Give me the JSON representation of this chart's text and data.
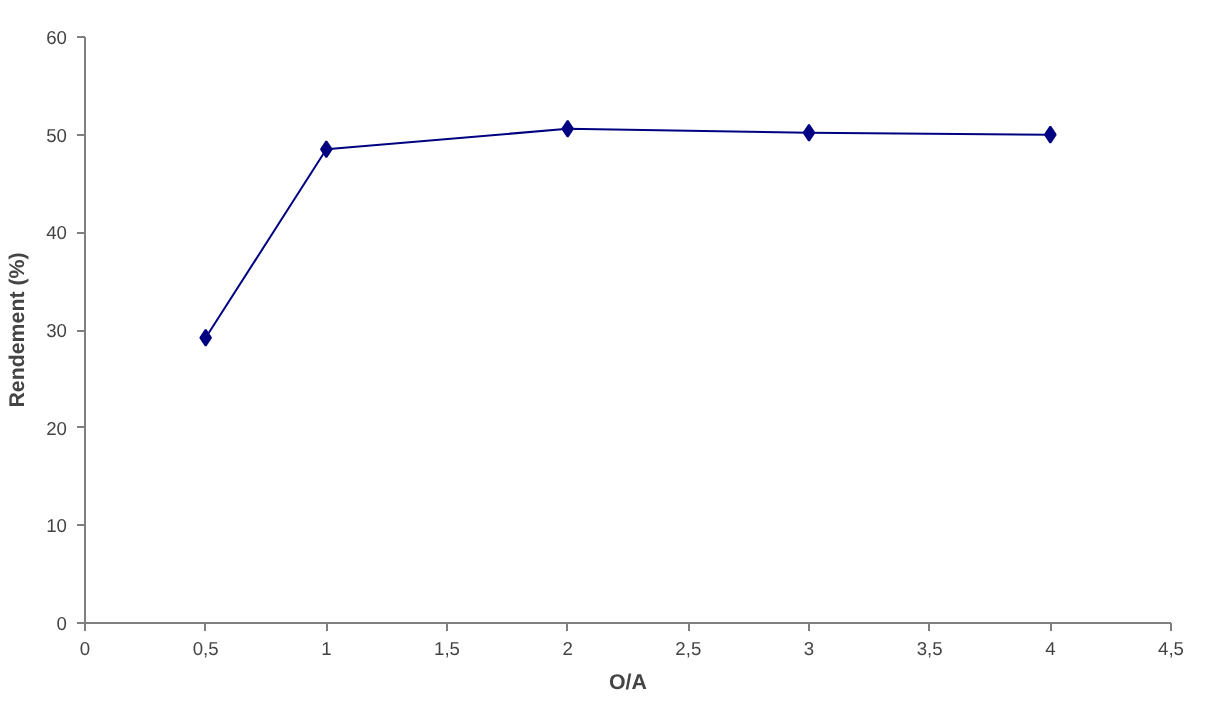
{
  "chart_data": {
    "type": "line",
    "xlabel": "O/A",
    "ylabel": "Rendement (%)",
    "x": [
      0.5,
      1,
      2,
      3,
      4
    ],
    "series": [
      {
        "color": "#000080",
        "values": [
          29.2,
          48.5,
          50.6,
          50.2,
          50.0
        ]
      }
    ],
    "xlim": [
      0,
      4.5
    ],
    "xticks": [
      0,
      {
        "value": 0.5,
        "label": "0,5"
      },
      1,
      {
        "value": 1.5,
        "label": "1,5"
      },
      2,
      {
        "value": 2.5,
        "label": "2,5"
      },
      3,
      {
        "value": 3.5,
        "label": "3,5"
      },
      4,
      {
        "value": 4.5,
        "label": "4,5"
      }
    ],
    "ylim": [
      0,
      60
    ],
    "yticks": [
      0,
      10,
      20,
      30,
      40,
      50,
      60
    ],
    "grid": false,
    "marker": "diamond",
    "line_style": "solid"
  }
}
